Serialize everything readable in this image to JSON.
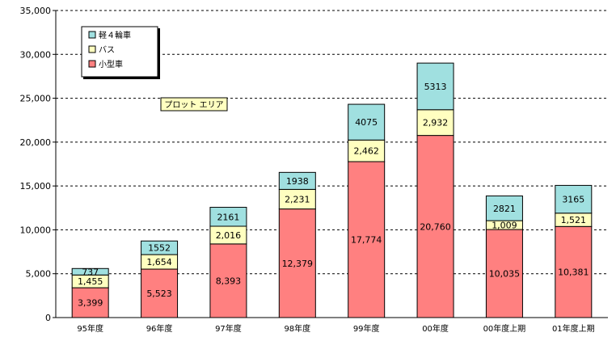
{
  "chart_data": {
    "type": "bar",
    "stacked": true,
    "categories": [
      "95年度",
      "96年度",
      "97年度",
      "98年度",
      "99年度",
      "00年度",
      "00年度上期",
      "01年度上期"
    ],
    "series": [
      {
        "name": "小型車",
        "color": "#ff8080",
        "values": [
          3399,
          5523,
          8393,
          12379,
          17774,
          20760,
          10035,
          10381
        ],
        "labels": [
          "3,399",
          "5,523",
          "8,393",
          "12,379",
          "17,774",
          "20,760",
          "10,035",
          "10,381"
        ]
      },
      {
        "name": "バス",
        "color": "#ffffc0",
        "values": [
          1455,
          1654,
          2016,
          2231,
          2462,
          2932,
          1009,
          1521
        ],
        "labels": [
          "1,455",
          "1,654",
          "2,016",
          "2,231",
          "2,462",
          "2,932",
          "1,009",
          "1,521"
        ]
      },
      {
        "name": "軽４輪車",
        "color": "#a0e0e0",
        "values": [
          737,
          1552,
          2161,
          1938,
          4075,
          5313,
          2821,
          3165
        ],
        "labels": [
          "737",
          "1552",
          "2161",
          "1938",
          "4075",
          "5313",
          "2821",
          "3165"
        ]
      }
    ],
    "ylim": [
      0,
      35000
    ],
    "yticks": [
      0,
      5000,
      10000,
      15000,
      20000,
      25000,
      30000,
      35000
    ],
    "ytick_labels": [
      "0",
      "5,000",
      "10,000",
      "15,000",
      "20,000",
      "25,000",
      "30,000",
      "35,000"
    ],
    "grid": true,
    "legend_position": "top-left",
    "legend_order": [
      "軽４輪車",
      "バス",
      "小型車"
    ],
    "annotation": "プロット エリア"
  }
}
